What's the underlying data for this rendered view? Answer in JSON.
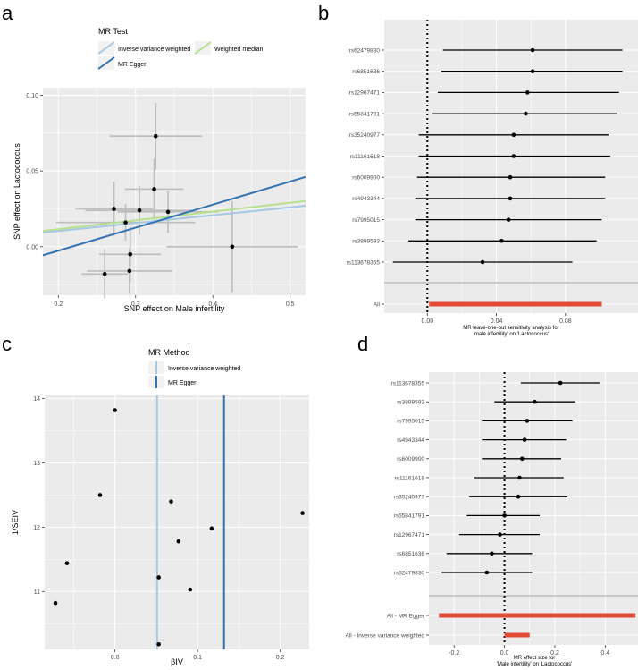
{
  "panels": {
    "a": {
      "letter": "a",
      "legend_title": "MR Test",
      "legend_items": [
        "Inverse variance weighted",
        "Weighted median",
        "MR Egger"
      ],
      "xlabel": "SNP effect on Male infertility",
      "ylabel": "SNP effect on Lactococcus"
    },
    "b": {
      "letter": "b",
      "xlabel_line1": "MR leave-one-out sensitivity analysis for",
      "xlabel_line2": "'male infertility' on 'Lactococcus'"
    },
    "c": {
      "letter": "c",
      "legend_title": "MR Method",
      "legend_items": [
        "Inverse variance weighted",
        "MR Egger"
      ],
      "xlabel": "βIV",
      "ylabel": "1/SEIV"
    },
    "d": {
      "letter": "d",
      "xlabel_line1": "MR effect size for",
      "xlabel_line2": "'Male infertility' on 'Lactococcus'"
    }
  },
  "colors": {
    "ivw": "#a6c8e0",
    "egger": "#3274b3",
    "wm": "#b6e08e",
    "point": "#000000",
    "ci": "#bdbdbd",
    "summary": "#e34a33",
    "panel_bg": "#ebebeb",
    "grid": "#ffffff"
  },
  "chart_data": [
    {
      "panel": "a",
      "type": "scatter",
      "title": "",
      "xlabel": "SNP effect on Male infertility",
      "ylabel": "SNP effect on Lactococcus",
      "xlim": [
        0.18,
        0.52
      ],
      "ylim": [
        -0.032,
        0.105
      ],
      "xticks": [
        0.2,
        0.3,
        0.4,
        0.5
      ],
      "yticks": [
        0.0,
        0.05,
        0.1
      ],
      "xtick_labels": [
        "0.2",
        "0.3",
        "0.4",
        "0.5"
      ],
      "ytick_labels": [
        "0.00",
        "0.05",
        "0.10"
      ],
      "points": [
        {
          "x": 0.326,
          "y": 0.073,
          "xerr": 0.06,
          "yerr": 0.022
        },
        {
          "x": 0.324,
          "y": 0.038,
          "xerr": 0.038,
          "yerr": 0.02
        },
        {
          "x": 0.272,
          "y": 0.025,
          "xerr": 0.05,
          "yerr": 0.018
        },
        {
          "x": 0.305,
          "y": 0.024,
          "xerr": 0.07,
          "yerr": 0.016
        },
        {
          "x": 0.342,
          "y": 0.023,
          "xerr": 0.065,
          "yerr": 0.014
        },
        {
          "x": 0.287,
          "y": 0.016,
          "xerr": 0.09,
          "yerr": 0.012
        },
        {
          "x": 0.293,
          "y": -0.005,
          "xerr": 0.04,
          "yerr": 0.018
        },
        {
          "x": 0.292,
          "y": -0.016,
          "xerr": 0.055,
          "yerr": 0.015
        },
        {
          "x": 0.26,
          "y": -0.018,
          "xerr": 0.03,
          "yerr": 0.016
        },
        {
          "x": 0.425,
          "y": 0.0,
          "xerr": 0.085,
          "yerr": 0.03
        }
      ],
      "lines": [
        {
          "name": "Inverse variance weighted",
          "intercept": 0.0,
          "slope": 0.052
        },
        {
          "name": "Weighted median",
          "intercept": 0.0,
          "slope": 0.058
        },
        {
          "name": "MR Egger",
          "intercept": -0.033,
          "slope": 0.152
        }
      ]
    },
    {
      "panel": "b",
      "type": "forest",
      "xlim": [
        -0.025,
        0.122
      ],
      "xticks": [
        0.0,
        0.04,
        0.08
      ],
      "xtick_labels": [
        "0.00",
        "0.04",
        "0.08"
      ],
      "xlabel": "MR leave-one-out sensitivity analysis for 'male infertility' on 'Lactococcus'",
      "rows": [
        {
          "label": "rs62479830",
          "est": 0.061,
          "lo": 0.009,
          "hi": 0.113
        },
        {
          "label": "rs6851636",
          "est": 0.061,
          "lo": 0.008,
          "hi": 0.113
        },
        {
          "label": "rs12967471",
          "est": 0.058,
          "lo": 0.006,
          "hi": 0.111
        },
        {
          "label": "rs55841791",
          "est": 0.057,
          "lo": 0.003,
          "hi": 0.11
        },
        {
          "label": "rs35240977",
          "est": 0.05,
          "lo": -0.005,
          "hi": 0.105
        },
        {
          "label": "rs11161618",
          "est": 0.05,
          "lo": -0.005,
          "hi": 0.106
        },
        {
          "label": "rs6009900",
          "est": 0.048,
          "lo": -0.006,
          "hi": 0.103
        },
        {
          "label": "rs4943344",
          "est": 0.048,
          "lo": -0.007,
          "hi": 0.103
        },
        {
          "label": "rs7995015",
          "est": 0.047,
          "lo": -0.007,
          "hi": 0.101
        },
        {
          "label": "rs3899593",
          "est": 0.043,
          "lo": -0.011,
          "hi": 0.098
        },
        {
          "label": "rs113678355",
          "est": 0.032,
          "lo": -0.02,
          "hi": 0.084
        }
      ],
      "summary": {
        "label": "All",
        "est": 0.051,
        "lo": 0.001,
        "hi": 0.101
      }
    },
    {
      "panel": "c",
      "type": "funnel",
      "xlim": [
        -0.085,
        0.235
      ],
      "ylim": [
        10.1,
        14.05
      ],
      "xticks": [
        0.0,
        0.1,
        0.2
      ],
      "xtick_labels": [
        "0.0",
        "0.1",
        "0.2"
      ],
      "yticks": [
        11,
        12,
        13,
        14
      ],
      "ytick_labels": [
        "11",
        "12",
        "13",
        "14"
      ],
      "points": [
        {
          "x": 0.0,
          "y": 13.82
        },
        {
          "x": -0.018,
          "y": 12.5
        },
        {
          "x": 0.068,
          "y": 12.4
        },
        {
          "x": 0.227,
          "y": 12.22
        },
        {
          "x": 0.117,
          "y": 11.98
        },
        {
          "x": 0.077,
          "y": 11.78
        },
        {
          "x": -0.058,
          "y": 11.44
        },
        {
          "x": 0.053,
          "y": 11.22
        },
        {
          "x": 0.091,
          "y": 11.03
        },
        {
          "x": -0.072,
          "y": 10.82
        },
        {
          "x": 0.053,
          "y": 10.18
        }
      ],
      "vlines": [
        {
          "name": "Inverse variance weighted",
          "x": 0.051
        },
        {
          "name": "MR Egger",
          "x": 0.132
        }
      ]
    },
    {
      "panel": "d",
      "type": "forest",
      "xlim": [
        -0.3,
        0.53
      ],
      "xticks": [
        -0.2,
        0.0,
        0.2,
        0.4
      ],
      "xtick_labels": [
        "-0.2",
        "0.0",
        "0.2",
        "0.4"
      ],
      "xlabel": "MR effect size for 'Male infertility' on 'Lactococcus'",
      "rows": [
        {
          "label": "rs113678355",
          "est": 0.222,
          "lo": 0.065,
          "hi": 0.38
        },
        {
          "label": "rs3899593",
          "est": 0.12,
          "lo": -0.04,
          "hi": 0.28
        },
        {
          "label": "rs7995015",
          "est": 0.09,
          "lo": -0.09,
          "hi": 0.27
        },
        {
          "label": "rs4943344",
          "est": 0.08,
          "lo": -0.09,
          "hi": 0.245
        },
        {
          "label": "rs6009900",
          "est": 0.07,
          "lo": -0.09,
          "hi": 0.225
        },
        {
          "label": "rs11161618",
          "est": 0.06,
          "lo": -0.12,
          "hi": 0.235
        },
        {
          "label": "rs35240977",
          "est": 0.055,
          "lo": -0.14,
          "hi": 0.25
        },
        {
          "label": "rs55841791",
          "est": 0.0,
          "lo": -0.15,
          "hi": 0.14
        },
        {
          "label": "rs12967471",
          "est": -0.018,
          "lo": -0.18,
          "hi": 0.14
        },
        {
          "label": "rs6851636",
          "est": -0.05,
          "lo": -0.23,
          "hi": 0.11
        },
        {
          "label": "rs62479830",
          "est": -0.07,
          "lo": -0.25,
          "hi": 0.11
        }
      ],
      "summary_rows": [
        {
          "label": "All - MR Egger",
          "est": 0.132,
          "lo": -0.26,
          "hi": 0.52
        },
        {
          "label": "All - Inverse variance weighted",
          "est": 0.05,
          "lo": 0.0,
          "hi": 0.1
        }
      ]
    }
  ]
}
